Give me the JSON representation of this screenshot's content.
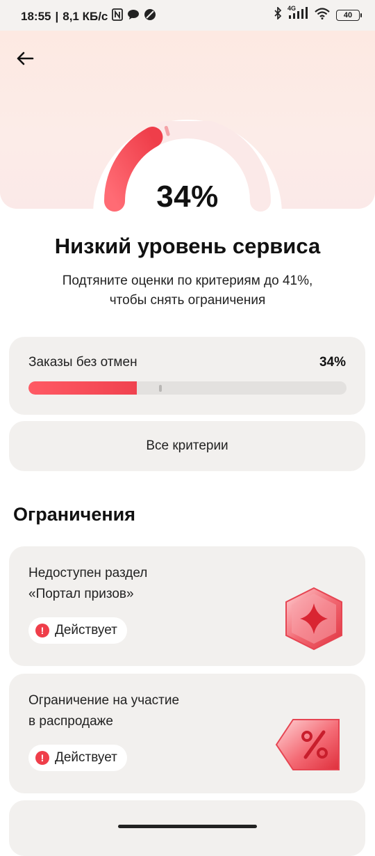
{
  "status_bar": {
    "time": "18:55",
    "speed": "8,1 КБ/с",
    "battery": "40",
    "network": "4G"
  },
  "header": {
    "back_icon": "arrow-left-icon"
  },
  "gauge": {
    "value_label": "34%",
    "value": 34,
    "target": 41,
    "fill_color": "#f0424f"
  },
  "summary": {
    "title": "Низкий уровень сервиса",
    "subtitle_line1": "Подтяните оценки по критериям до 41%,",
    "subtitle_line2": "чтобы снять ограничения"
  },
  "metric": {
    "label": "Заказы без отмен",
    "value_label": "34%",
    "progress": 0.34,
    "target": 0.41
  },
  "all_criteria_button": "Все критерии",
  "restrictions": {
    "title": "Ограничения",
    "items": [
      {
        "line1": "Недоступен раздел",
        "line2": "«Портал призов»",
        "status": "Действует",
        "icon": "prize-portal-icon"
      },
      {
        "line1": "Ограничение на участие",
        "line2": "в распродаже",
        "status": "Действует",
        "icon": "discount-tag-icon"
      }
    ]
  }
}
